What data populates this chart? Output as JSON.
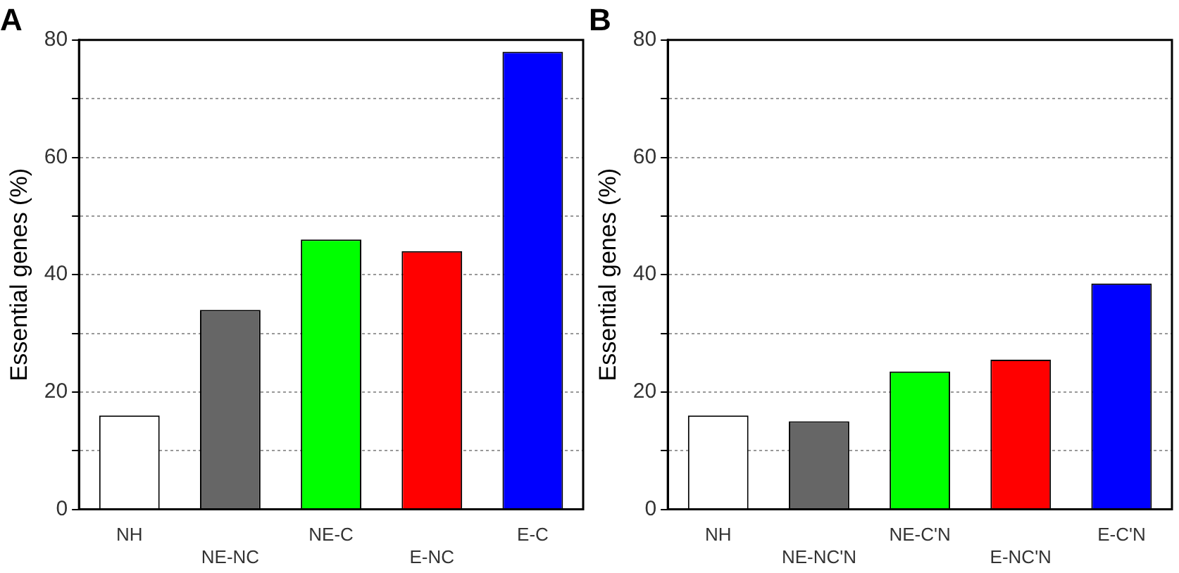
{
  "chart_data": [
    {
      "type": "bar",
      "title": "A",
      "ylabel": "Essential genes (%)",
      "categories": [
        "NH",
        "NE-NC",
        "NE-C",
        "E-NC",
        "E-C"
      ],
      "values": [
        16,
        34,
        46,
        44,
        78
      ],
      "colors": [
        "#ffffff",
        "#666666",
        "#00ff00",
        "#ff0000",
        "#0000ff"
      ],
      "ylim": [
        0,
        80
      ],
      "yticks": [
        0,
        {
          "value": 10,
          "label": null
        },
        20,
        {
          "value": 30,
          "label": null
        },
        40,
        {
          "value": 50,
          "label": null
        },
        60,
        {
          "value": 70,
          "label": null
        },
        80
      ],
      "grid": "y"
    },
    {
      "type": "bar",
      "title": "B",
      "ylabel": "Essential genes (%)",
      "categories": [
        "NH",
        "NE-NC'N",
        "NE-C'N",
        "E-NC'N",
        "E-C'N"
      ],
      "values": [
        16,
        15,
        23.5,
        25.5,
        38.5
      ],
      "colors": [
        "#ffffff",
        "#666666",
        "#00ff00",
        "#ff0000",
        "#0000ff"
      ],
      "ylim": [
        0,
        80
      ],
      "yticks": [
        0,
        {
          "value": 10,
          "label": null
        },
        20,
        {
          "value": 30,
          "label": null
        },
        40,
        {
          "value": 50,
          "label": null
        },
        60,
        {
          "value": 70,
          "label": null
        },
        80
      ],
      "grid": "y"
    }
  ]
}
